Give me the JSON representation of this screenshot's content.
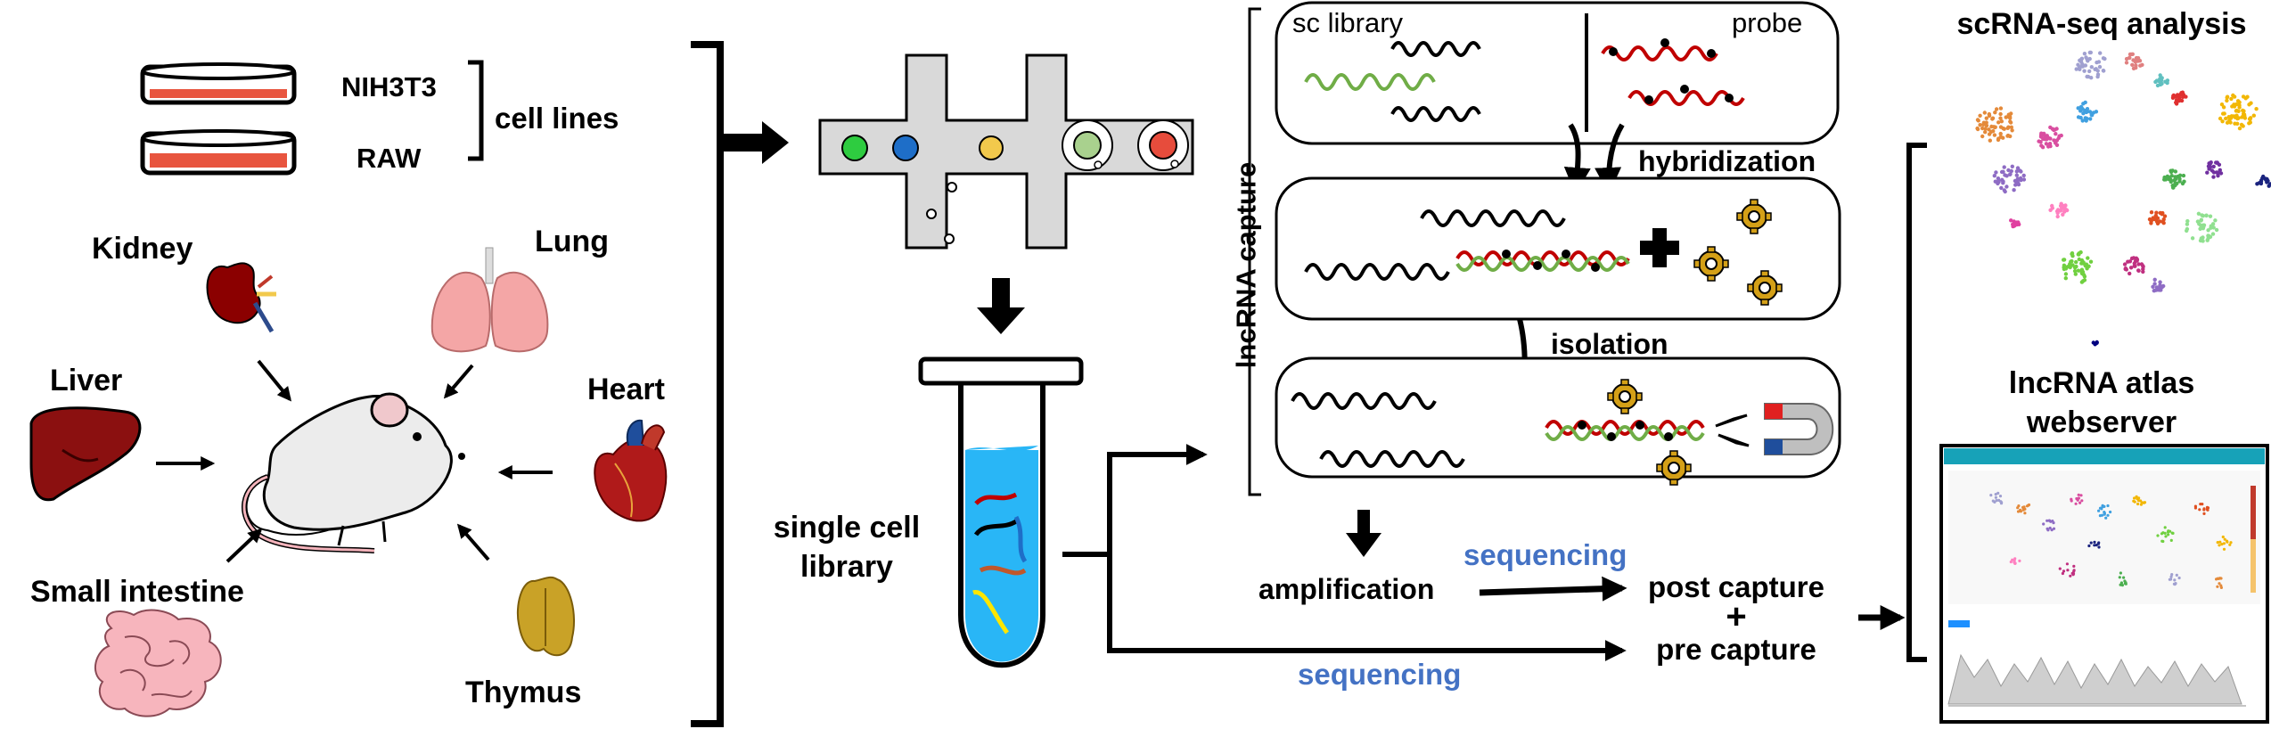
{
  "cell_lines": {
    "nih3t3": "NIH3T3",
    "raw": "RAW",
    "group_label": "cell lines"
  },
  "tissues": {
    "kidney": "Kidney",
    "lung": "Lung",
    "liver": "Liver",
    "heart": "Heart",
    "small_intestine": "Small intestine",
    "thymus": "Thymus"
  },
  "library": {
    "line1": "single cell",
    "line2": "library"
  },
  "capture": {
    "side_label": "lncRNA capture",
    "sc_library": "sc library",
    "probe": "probe",
    "hybridization": "hybridization",
    "isolation": "isolation"
  },
  "downstream": {
    "amplification": "amplification",
    "sequencing_top": "sequencing",
    "sequencing_bottom": "sequencing",
    "post_capture": "post capture",
    "plus": "+",
    "pre_capture": "pre capture"
  },
  "analysis": {
    "title": "scRNA-seq analysis",
    "atlas_line1": "lncRNA atlas",
    "atlas_line2": "webserver"
  },
  "colors": {
    "probe_red": "#c00000",
    "library_green": "#70ad47",
    "sequencing_blue": "#4472c4",
    "gear_gold": "#d4a017",
    "organ_red": "#8b0000",
    "lung_pink": "#f4a6a6",
    "intestine_pink": "#f7b5bd",
    "tube_blue": "#29b6f6"
  },
  "icons": [
    "petri-dish-icon",
    "kidney-icon",
    "lung-icon",
    "liver-icon",
    "heart-icon",
    "mouse-icon",
    "intestine-icon",
    "thymus-icon",
    "microfluidic-chip-icon",
    "tube-icon",
    "gear-icon",
    "magnet-icon",
    "umap-plot-icon",
    "webserver-screenshot-icon"
  ]
}
